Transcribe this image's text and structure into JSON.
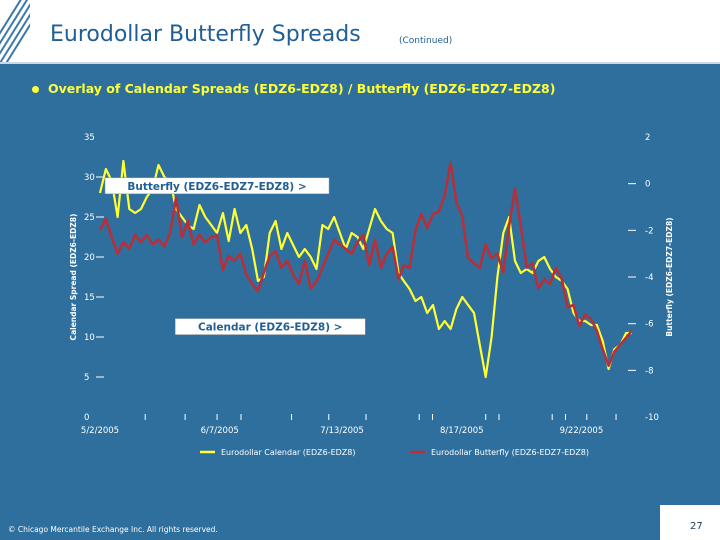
{
  "header": {
    "title": "Eurodollar Butterfly Spreads",
    "subtitle": "(Continued)"
  },
  "bullet": "Overlay of Calendar Spreads (EDZ6-EDZ8)  / Butterfly (EDZ6-EDZ7-EDZ8)",
  "colors": {
    "background": "#2E6F9E",
    "calendar": "#FFFF33",
    "butterfly": "#B5303A",
    "text": "#FFFFFF"
  },
  "chart_data": {
    "type": "line",
    "title": "",
    "ylabel_left": "Calendar Spread (EDZ6-EDZ8)",
    "ylabel_right": "Butterfly (EDZ6-EDZ7-EDZ8)",
    "y_left_range": [
      0,
      35
    ],
    "y_left_ticks": [
      "0",
      "5",
      "10",
      "15",
      "20",
      "25",
      "30",
      "35"
    ],
    "y_right_range": [
      -10,
      2
    ],
    "y_right_ticks": [
      "-10",
      "-8",
      "-6",
      "-4",
      "-2",
      "0",
      "2"
    ],
    "x_tick_labels": [
      "5/2/2005",
      "6/7/2005",
      "7/13/2005",
      "8/17/2005",
      "9/22/2005"
    ],
    "x_range": [
      0,
      100
    ],
    "annotations": [
      {
        "text": "Butterfly (EDZ6-EDZ7-EDZ8) >",
        "x": 22,
        "y": 28.9,
        "axis": "left"
      },
      {
        "text": "Calendar (EDZ6-EDZ8) >",
        "x": 32,
        "y": 11.3,
        "axis": "left"
      }
    ],
    "series": [
      {
        "name": "Eurodollar Calendar (EDZ6-EDZ8)",
        "axis": "left",
        "x": [
          0,
          1.1,
          2.2,
          3.3,
          4.4,
          5.5,
          6.6,
          7.7,
          8.8,
          9.9,
          11,
          12.1,
          13.2,
          14.3,
          15.4,
          16.5,
          17.6,
          18.7,
          19.8,
          20.9,
          22,
          23.1,
          24.2,
          25.3,
          26.4,
          27.5,
          28.6,
          29.7,
          30.8,
          31.9,
          33,
          34.1,
          35.2,
          36.3,
          37.4,
          38.5,
          39.6,
          40.7,
          41.8,
          42.9,
          44,
          45.1,
          46.2,
          47.3,
          48.4,
          49.5,
          50.6,
          51.7,
          52.8,
          53.9,
          55,
          56.1,
          57.1,
          58.2,
          59.3,
          60.4,
          61.5,
          62.6,
          63.7,
          64.8,
          65.9,
          67,
          68.1,
          69.2,
          70.3,
          71.4,
          72.5,
          73.6,
          74.7,
          75.8,
          76.9,
          78,
          79.1,
          80.2,
          81.3,
          82.4,
          83.5,
          84.6,
          85.7,
          86.8,
          87.9,
          89,
          90.1,
          91.2,
          92.3,
          93.4,
          94.5,
          95.6,
          96.7,
          97.8,
          98.9,
          100
        ],
        "values": [
          28,
          31,
          29.5,
          25,
          32,
          26,
          25.5,
          26,
          27.5,
          28.5,
          31.5,
          30,
          29.5,
          26,
          25,
          24,
          23.5,
          26.5,
          25,
          24,
          23,
          25.5,
          22,
          26,
          23,
          24,
          21,
          17,
          17.5,
          23,
          24.5,
          21,
          23,
          21.5,
          20,
          21,
          20,
          18.5,
          24,
          23.5,
          25,
          23,
          21,
          23,
          22.5,
          21,
          23.5,
          26,
          24.5,
          23.5,
          23,
          18,
          17,
          16,
          14.5,
          15,
          13,
          14,
          11,
          12,
          11,
          13.5,
          15,
          14,
          13,
          9,
          5,
          10,
          17.5,
          23,
          25,
          19.5,
          18,
          18.5,
          18,
          19.5,
          20,
          18.5,
          17.5,
          17,
          16,
          13,
          12,
          12,
          11.5,
          11.5,
          9.5,
          6,
          8.5,
          9,
          10.5,
          10.5
        ]
      },
      {
        "name": "Eurodollar Butterfly (EDZ6-EDZ7-EDZ8)",
        "axis": "right",
        "x": [
          0,
          1.1,
          2.2,
          3.3,
          4.4,
          5.5,
          6.6,
          7.7,
          8.8,
          9.9,
          11,
          12.1,
          13.2,
          14.3,
          15.4,
          16.5,
          17.6,
          18.7,
          19.8,
          20.9,
          22,
          23.1,
          24.2,
          25.3,
          26.4,
          27.5,
          28.6,
          29.7,
          30.8,
          31.9,
          33,
          34.1,
          35.2,
          36.3,
          37.4,
          38.5,
          39.6,
          40.7,
          41.8,
          42.9,
          44,
          45.1,
          46.2,
          47.3,
          48.4,
          49.5,
          50.6,
          51.7,
          52.8,
          53.9,
          55,
          56.1,
          57.1,
          58.2,
          59.3,
          60.4,
          61.5,
          62.6,
          63.7,
          64.8,
          65.9,
          67,
          68.1,
          69.2,
          70.3,
          71.4,
          72.5,
          73.6,
          74.7,
          75.8,
          76.9,
          78,
          79.1,
          80.2,
          81.3,
          82.4,
          83.5,
          84.6,
          85.7,
          86.8,
          87.9,
          89,
          90.1,
          91.2,
          92.3,
          93.4,
          94.5,
          95.6,
          96.7,
          97.8,
          98.9,
          100
        ],
        "values": [
          -2,
          -1.5,
          -2.3,
          -3,
          -2.5,
          -2.8,
          -2.2,
          -2.5,
          -2.2,
          -2.6,
          -2.4,
          -2.7,
          -2.1,
          -0.6,
          -2.3,
          -1.6,
          -2.6,
          -2.2,
          -2.5,
          -2.3,
          -2.2,
          -3.7,
          -3.1,
          -3.3,
          -3,
          -3.9,
          -4.3,
          -4.6,
          -3.8,
          -3.1,
          -2.9,
          -3.6,
          -3.3,
          -3.9,
          -4.3,
          -3.3,
          -4.5,
          -4.2,
          -3.6,
          -3,
          -2.4,
          -2.6,
          -2.8,
          -3,
          -2.5,
          -2.2,
          -3.5,
          -2.4,
          -3.6,
          -3,
          -2.7,
          -4.1,
          -3.5,
          -3.6,
          -2,
          -1.3,
          -1.9,
          -1.3,
          -1.2,
          -0.5,
          0.9,
          -0.8,
          -1.4,
          -3.2,
          -3.4,
          -3.6,
          -2.6,
          -3.2,
          -3,
          -3.8,
          -1.8,
          -0.2,
          -1.8,
          -3.6,
          -3.4,
          -4.5,
          -4.1,
          -4.3,
          -3.6,
          -4.1,
          -5.3,
          -5.2,
          -6.1,
          -5.6,
          -5.8,
          -6.3,
          -7.1,
          -7.8,
          -7.2,
          -6.9,
          -6.6,
          -6.3
        ]
      }
    ],
    "legend": [
      {
        "label": "Eurodollar Calendar (EDZ6-EDZ8)",
        "series": 0
      },
      {
        "label": "Eurodollar Butterfly (EDZ6-EDZ7-EDZ8)",
        "series": 1
      }
    ],
    "legend_position": "bottom"
  },
  "footer": {
    "copyright": "© Chicago Mercantile Exchange Inc. All rights reserved.",
    "page_number": "27"
  }
}
